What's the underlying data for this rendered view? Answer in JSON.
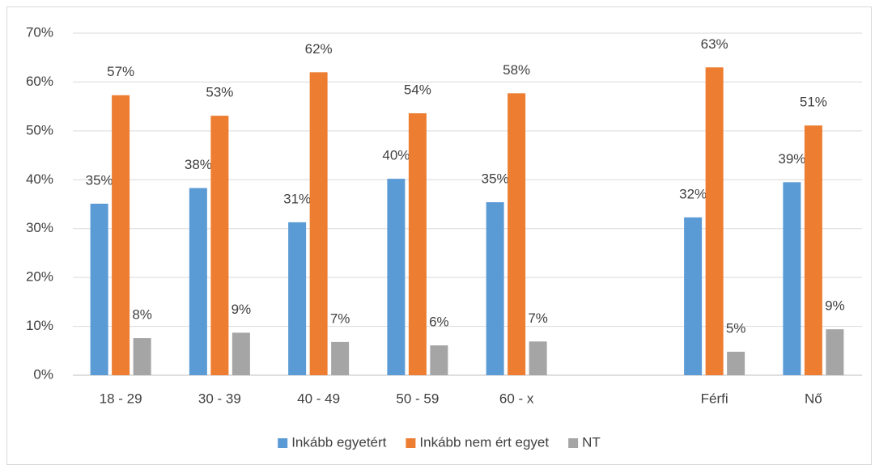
{
  "chart_data": {
    "type": "bar",
    "categories": [
      "18 - 29",
      "30 - 39",
      "40 - 49",
      "50 - 59",
      "60 - x",
      null,
      "Férfi",
      "Nő"
    ],
    "series": [
      {
        "name": "Inkább egyetért",
        "color": "#5b9bd5",
        "values": [
          35.1,
          38.3,
          31.3,
          40.2,
          35.4,
          null,
          32.3,
          39.5
        ],
        "value_labels": [
          "35%",
          "38%",
          "31%",
          "40%",
          "35%",
          null,
          "32%",
          "39%"
        ]
      },
      {
        "name": "Inkább nem ért egyet",
        "color": "#ed7d31",
        "values": [
          57.3,
          53.1,
          62.0,
          53.6,
          57.7,
          null,
          63.0,
          51.1
        ],
        "value_labels": [
          "57%",
          "53%",
          "62%",
          "54%",
          "58%",
          null,
          "63%",
          "51%"
        ]
      },
      {
        "name": "NT",
        "color": "#a5a5a5",
        "values": [
          7.6,
          8.7,
          6.8,
          6.1,
          6.9,
          null,
          4.8,
          9.4
        ],
        "value_labels": [
          "8%",
          "9%",
          "7%",
          "6%",
          "7%",
          null,
          "5%",
          "9%"
        ]
      }
    ],
    "ylim": [
      0,
      70
    ],
    "yticks": [
      {
        "value": 0,
        "label": "0%"
      },
      {
        "value": 10,
        "label": "10%"
      },
      {
        "value": 20,
        "label": "20%"
      },
      {
        "value": 30,
        "label": "30%"
      },
      {
        "value": 40,
        "label": "40%"
      },
      {
        "value": 50,
        "label": "50%"
      },
      {
        "value": 60,
        "label": "60%"
      },
      {
        "value": 70,
        "label": "70%"
      }
    ],
    "grid": true,
    "legend": "bottom"
  }
}
